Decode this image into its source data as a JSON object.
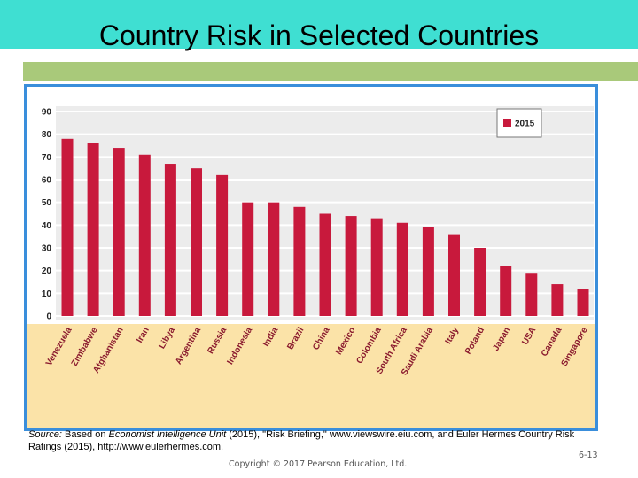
{
  "slide": {
    "title": "Country Risk in Selected Countries",
    "source_label": "Source:",
    "source_part1": " Based on ",
    "source_italic": "Economist Intelligence Unit",
    "source_part2": " (2015), \"Risk Briefing,\" www.viewswire.eiu.com, and Euler Hermes Country Risk Ratings (2015), http://www.eulerhermes.com.",
    "copyright": "Copyright © 2017 Pearson Education, Ltd.",
    "slide_number": "6-13"
  },
  "colors": {
    "title_band": "#3fdfd2",
    "accent_bar": "#a9c97a",
    "frame": "#3a8edb",
    "bars": "#c8193c",
    "label_area": "#fbe3a8",
    "plot_background": "#ececec"
  },
  "chart_data": {
    "type": "bar",
    "title": "",
    "xlabel": "",
    "ylabel": "",
    "ylim": [
      0,
      90
    ],
    "yticks": [
      0,
      10,
      20,
      30,
      40,
      50,
      60,
      70,
      80,
      90
    ],
    "grid": true,
    "legend_position": "top-right",
    "categories": [
      "Venezuela",
      "Zimbabwe",
      "Afghanistan",
      "Iran",
      "Libya",
      "Argentina",
      "Russia",
      "Indonesia",
      "India",
      "Brazil",
      "China",
      "Mexico",
      "Colombia",
      "South Africa",
      "Saudi Arabia",
      "Italy",
      "Poland",
      "Japan",
      "USA",
      "Canada",
      "Singapore"
    ],
    "series": [
      {
        "name": "2015",
        "values": [
          78,
          76,
          74,
          71,
          67,
          65,
          62,
          50,
          50,
          48,
          45,
          44,
          43,
          41,
          39,
          36,
          30,
          22,
          19,
          14,
          12
        ]
      }
    ]
  }
}
